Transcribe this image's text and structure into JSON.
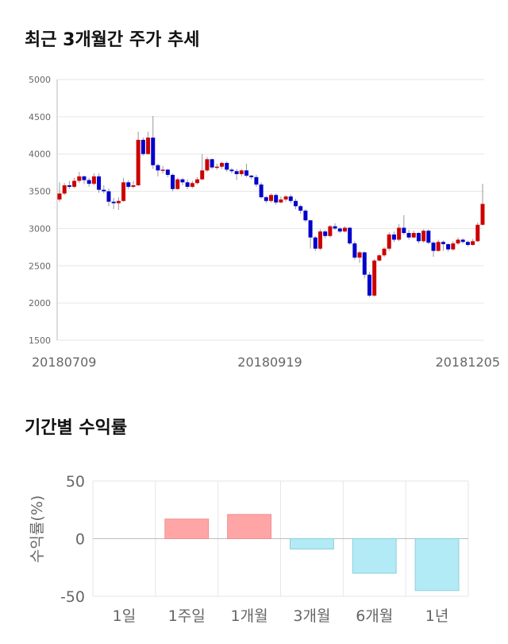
{
  "titles": {
    "price": "최근 3개월간 주가 추세",
    "returns": "기간별 수익률"
  },
  "chart_data": [
    {
      "type": "candlestick",
      "title": "최근 3개월간 주가 추세",
      "ylim": [
        1500,
        5000
      ],
      "yticks": [
        1500,
        2000,
        2500,
        3000,
        3500,
        4000,
        4500,
        5000
      ],
      "xtick_labels": [
        "20180709",
        "20180919",
        "20181205"
      ],
      "up_color": "#cc0000",
      "down_color": "#0000cc",
      "grid": true,
      "candles": [
        [
          3390,
          3470,
          3620,
          3360
        ],
        [
          3470,
          3580,
          3610,
          3450
        ],
        [
          3580,
          3560,
          3640,
          3530
        ],
        [
          3560,
          3640,
          3680,
          3540
        ],
        [
          3640,
          3700,
          3760,
          3610
        ],
        [
          3700,
          3650,
          3710,
          3600
        ],
        [
          3650,
          3600,
          3680,
          3560
        ],
        [
          3600,
          3700,
          3740,
          3580
        ],
        [
          3700,
          3520,
          3740,
          3480
        ],
        [
          3520,
          3500,
          3580,
          3470
        ],
        [
          3500,
          3360,
          3540,
          3300
        ],
        [
          3360,
          3340,
          3410,
          3260
        ],
        [
          3340,
          3370,
          3420,
          3250
        ],
        [
          3370,
          3620,
          3680,
          3360
        ],
        [
          3620,
          3560,
          3650,
          3530
        ],
        [
          3560,
          3580,
          3640,
          3540
        ],
        [
          3580,
          4190,
          4300,
          3570
        ],
        [
          4190,
          4000,
          4220,
          3980
        ],
        [
          4000,
          4220,
          4300,
          3990
        ],
        [
          4220,
          3850,
          4510,
          3800
        ],
        [
          3850,
          3780,
          3870,
          3700
        ],
        [
          3780,
          3790,
          3840,
          3740
        ],
        [
          3790,
          3720,
          3800,
          3690
        ],
        [
          3720,
          3530,
          3740,
          3500
        ],
        [
          3530,
          3660,
          3680,
          3520
        ],
        [
          3660,
          3620,
          3680,
          3580
        ],
        [
          3620,
          3560,
          3660,
          3530
        ],
        [
          3560,
          3610,
          3640,
          3540
        ],
        [
          3610,
          3660,
          3690,
          3590
        ],
        [
          3660,
          3780,
          4000,
          3650
        ],
        [
          3780,
          3930,
          3960,
          3760
        ],
        [
          3930,
          3820,
          3940,
          3800
        ],
        [
          3820,
          3830,
          3870,
          3790
        ],
        [
          3830,
          3880,
          3900,
          3800
        ],
        [
          3880,
          3790,
          3900,
          3760
        ],
        [
          3790,
          3770,
          3810,
          3740
        ],
        [
          3770,
          3730,
          3800,
          3650
        ],
        [
          3730,
          3780,
          3800,
          3700
        ],
        [
          3780,
          3710,
          3870,
          3690
        ],
        [
          3710,
          3690,
          3720,
          3660
        ],
        [
          3690,
          3590,
          3720,
          3560
        ],
        [
          3590,
          3420,
          3620,
          3400
        ],
        [
          3420,
          3370,
          3440,
          3340
        ],
        [
          3370,
          3450,
          3470,
          3350
        ],
        [
          3450,
          3350,
          3470,
          3320
        ],
        [
          3350,
          3390,
          3430,
          3340
        ],
        [
          3390,
          3430,
          3450,
          3360
        ],
        [
          3430,
          3370,
          3460,
          3340
        ],
        [
          3370,
          3300,
          3400,
          3260
        ],
        [
          3300,
          3240,
          3320,
          3200
        ],
        [
          3240,
          3110,
          3260,
          3090
        ],
        [
          3110,
          2880,
          3120,
          2730
        ],
        [
          2880,
          2730,
          2900,
          2700
        ],
        [
          2730,
          2960,
          2990,
          2710
        ],
        [
          2960,
          2900,
          2980,
          2870
        ],
        [
          2900,
          3030,
          3050,
          2880
        ],
        [
          3030,
          3000,
          3070,
          2980
        ],
        [
          3000,
          2960,
          3020,
          2940
        ],
        [
          2960,
          3010,
          3030,
          2950
        ],
        [
          3010,
          2800,
          3020,
          2780
        ],
        [
          2800,
          2610,
          2830,
          2580
        ],
        [
          2610,
          2680,
          2700,
          2540
        ],
        [
          2680,
          2380,
          2690,
          2330
        ],
        [
          2380,
          2100,
          2420,
          2080
        ],
        [
          2100,
          2570,
          2590,
          2090
        ],
        [
          2570,
          2640,
          2660,
          2560
        ],
        [
          2640,
          2730,
          2750,
          2620
        ],
        [
          2730,
          2920,
          2950,
          2700
        ],
        [
          2920,
          2850,
          2960,
          2820
        ],
        [
          2850,
          3010,
          3060,
          2830
        ],
        [
          3010,
          2940,
          3180,
          2920
        ],
        [
          2940,
          2880,
          2980,
          2850
        ],
        [
          2880,
          2940,
          2970,
          2870
        ],
        [
          2940,
          2830,
          2950,
          2800
        ],
        [
          2830,
          2970,
          2990,
          2810
        ],
        [
          2970,
          2810,
          2990,
          2790
        ],
        [
          2810,
          2700,
          2830,
          2620
        ],
        [
          2700,
          2820,
          2850,
          2690
        ],
        [
          2820,
          2790,
          2840,
          2700
        ],
        [
          2790,
          2720,
          2800,
          2690
        ],
        [
          2720,
          2800,
          2830,
          2700
        ],
        [
          2800,
          2850,
          2880,
          2780
        ],
        [
          2850,
          2820,
          2870,
          2800
        ],
        [
          2820,
          2780,
          2840,
          2760
        ],
        [
          2780,
          2830,
          2860,
          2770
        ],
        [
          2830,
          3050,
          3080,
          2820
        ],
        [
          3050,
          3330,
          3600,
          3040
        ]
      ]
    },
    {
      "type": "bar",
      "title": "기간별 수익률",
      "categories": [
        "1일",
        "1주일",
        "1개월",
        "3개월",
        "6개월",
        "1년"
      ],
      "values": [
        0,
        17,
        21,
        -9,
        -30,
        -45
      ],
      "ylabel": "수익률(%)",
      "ylim": [
        -50,
        50
      ],
      "yticks": [
        -50,
        0,
        50
      ],
      "positive_color": "#ffa5a5",
      "negative_color": "#b2eaf5"
    }
  ]
}
